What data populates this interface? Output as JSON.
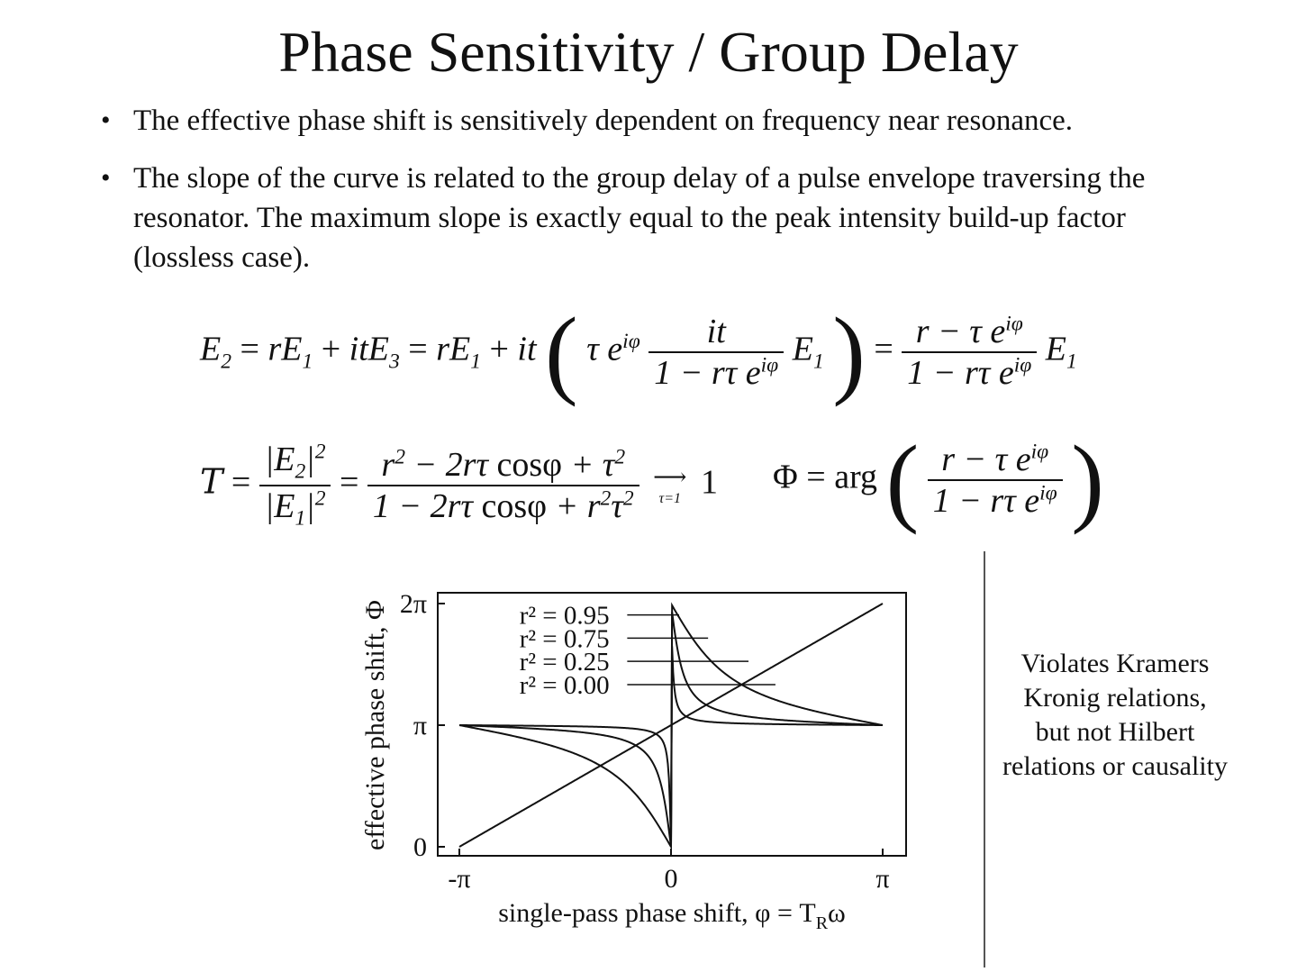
{
  "slide": {
    "title": "Phase Sensitivity / Group Delay",
    "bullets": [
      "The effective phase shift is sensitively dependent on frequency near resonance.",
      "The slope of the curve is related to the group delay of a pulse envelope traversing the resonator.  The maximum slope is exactly equal to the peak intensity build-up factor (lossless case)."
    ],
    "bullet_symbol": "•",
    "side_note": [
      "Violates Kramers",
      "Kronig relations,",
      "but not Hilbert",
      "relations or causality"
    ]
  },
  "equations": {
    "e2": {
      "lhs_E": "E",
      "lhs_sub": "2",
      "eq1": "= ",
      "r1": "rE",
      "r1_sub": "1",
      "plus1": " + ",
      "it1": "itE",
      "it1_sub": "3",
      "eq2": " = ",
      "r2": "rE",
      "r2_sub": "1",
      "plus2": " + ",
      "it2": "it",
      "tau_e": "τ e",
      "tau_e_sup": "iφ",
      "frac_num": "it",
      "frac_den_main": "1 − rτ e",
      "frac_den_sup": "iφ",
      "e1": "E",
      "e1_sub": "1",
      "eq3": " = ",
      "frac2_num_main": "r − τ e",
      "frac2_num_sup": "iφ",
      "frac2_den_main": "1 − rτ e",
      "frac2_den_sup": "iφ",
      "e1b": "E",
      "e1b_sub": "1",
      "paren_l": "(",
      "paren_r": ")"
    },
    "trans": {
      "T": "T",
      "eq": " = ",
      "num_abs": "|E",
      "num_sub": "2",
      "num_close": "|",
      "num_pow": "2",
      "den_abs": "|E",
      "den_sub": "1",
      "den_close": "|",
      "den_pow": "2",
      "eq2": " = ",
      "frac_num_a": "r",
      "frac_num_a_pow": "2",
      "frac_num_b": " − 2rτ ",
      "frac_num_cos": "cosφ",
      "frac_num_c": " + τ",
      "frac_num_c_pow": "2",
      "frac_den_a": "1 − 2rτ ",
      "frac_den_cos": "cosφ",
      "frac_den_b": " + r",
      "frac_den_b_pow": "2",
      "frac_den_c": "τ",
      "frac_den_c_pow": "2",
      "arrow": "⟶",
      "arrow_cond": "τ=1",
      "limit": "1"
    },
    "phase": {
      "Phi": "Φ",
      "eq": " = ",
      "arg": "arg",
      "num_main": "r − τ e",
      "num_sup": "iφ",
      "den_main": "1 − rτ e",
      "den_sup": "iφ",
      "paren_l": "(",
      "paren_r": ")"
    }
  },
  "chart_data": {
    "type": "line",
    "xlabel": "single-pass phase shift, φ = T",
    "xlabel_sub": "R",
    "xlabel_tail": "ω",
    "ylabel": "effective phase shift, Φ",
    "x_ticks": [
      "-π",
      "0",
      "π"
    ],
    "y_ticks": [
      "0",
      "π",
      "2π"
    ],
    "xlim": [
      -3.1416,
      3.1416
    ],
    "ylim": [
      0,
      6.2832
    ],
    "grid": false,
    "series": [
      {
        "name": "r² = 0.95",
        "r_squared": 0.95,
        "annotation_x": 0.12,
        "annotation_y": 6.0
      },
      {
        "name": "r² = 0.75",
        "r_squared": 0.75,
        "annotation_x": 0.55,
        "annotation_y": 5.52
      },
      {
        "name": "r² = 0.25",
        "r_squared": 0.25,
        "annotation_x": 1.15,
        "annotation_y": 4.62
      },
      {
        "name": "r² = 0.00",
        "r_squared": 0.0,
        "annotation_x": 1.55,
        "annotation_y": 4.69
      }
    ],
    "label_rows_y": [
      5.99,
      5.39,
      4.79,
      4.19
    ]
  }
}
